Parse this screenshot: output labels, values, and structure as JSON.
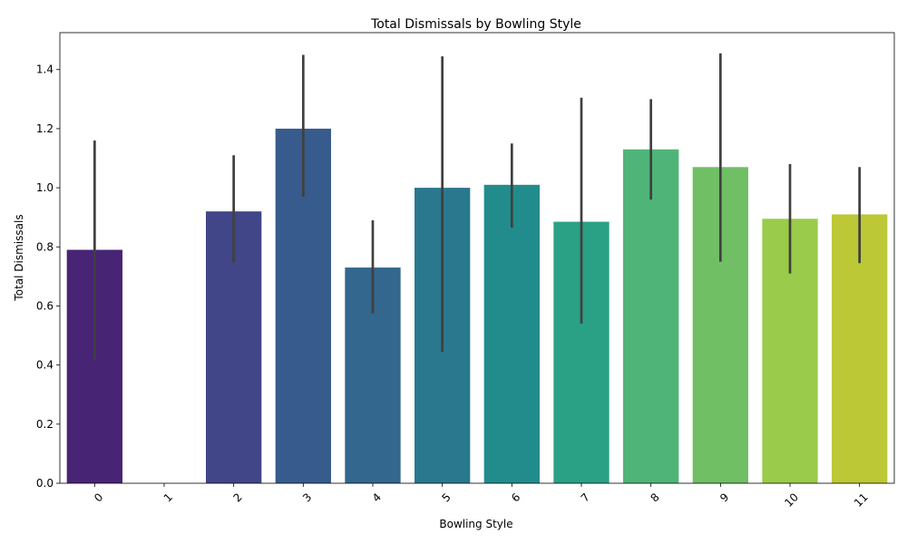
{
  "chart_data": {
    "type": "bar",
    "title": "Total Dismissals by Bowling Style",
    "xlabel": "Bowling Style",
    "ylabel": "Total Dismissals",
    "categories": [
      "0",
      "1",
      "2",
      "3",
      "4",
      "5",
      "6",
      "7",
      "8",
      "9",
      "10",
      "11"
    ],
    "values": [
      0.79,
      0.0,
      0.92,
      1.2,
      0.73,
      1.0,
      1.01,
      0.885,
      1.13,
      1.07,
      0.895,
      0.91
    ],
    "error_low": [
      0.42,
      null,
      0.745,
      0.97,
      0.575,
      0.445,
      0.865,
      0.54,
      0.96,
      0.75,
      0.71,
      0.745
    ],
    "error_high": [
      1.16,
      null,
      1.11,
      1.45,
      0.89,
      1.445,
      1.15,
      1.305,
      1.3,
      1.455,
      1.08,
      1.07
    ],
    "colors": [
      "#482475",
      "#472d7b",
      "#404688",
      "#375b8d",
      "#33678d",
      "#2a788e",
      "#228c8d",
      "#2aa185",
      "#4fb478",
      "#70bf65",
      "#9bcb4a",
      "#bcc835"
    ],
    "error_color": "#404040",
    "yticks": [
      "0.0",
      "0.2",
      "0.4",
      "0.6",
      "0.8",
      "1.0",
      "1.2",
      "1.4"
    ],
    "ylim": [
      0,
      1.525
    ],
    "grid": false
  }
}
